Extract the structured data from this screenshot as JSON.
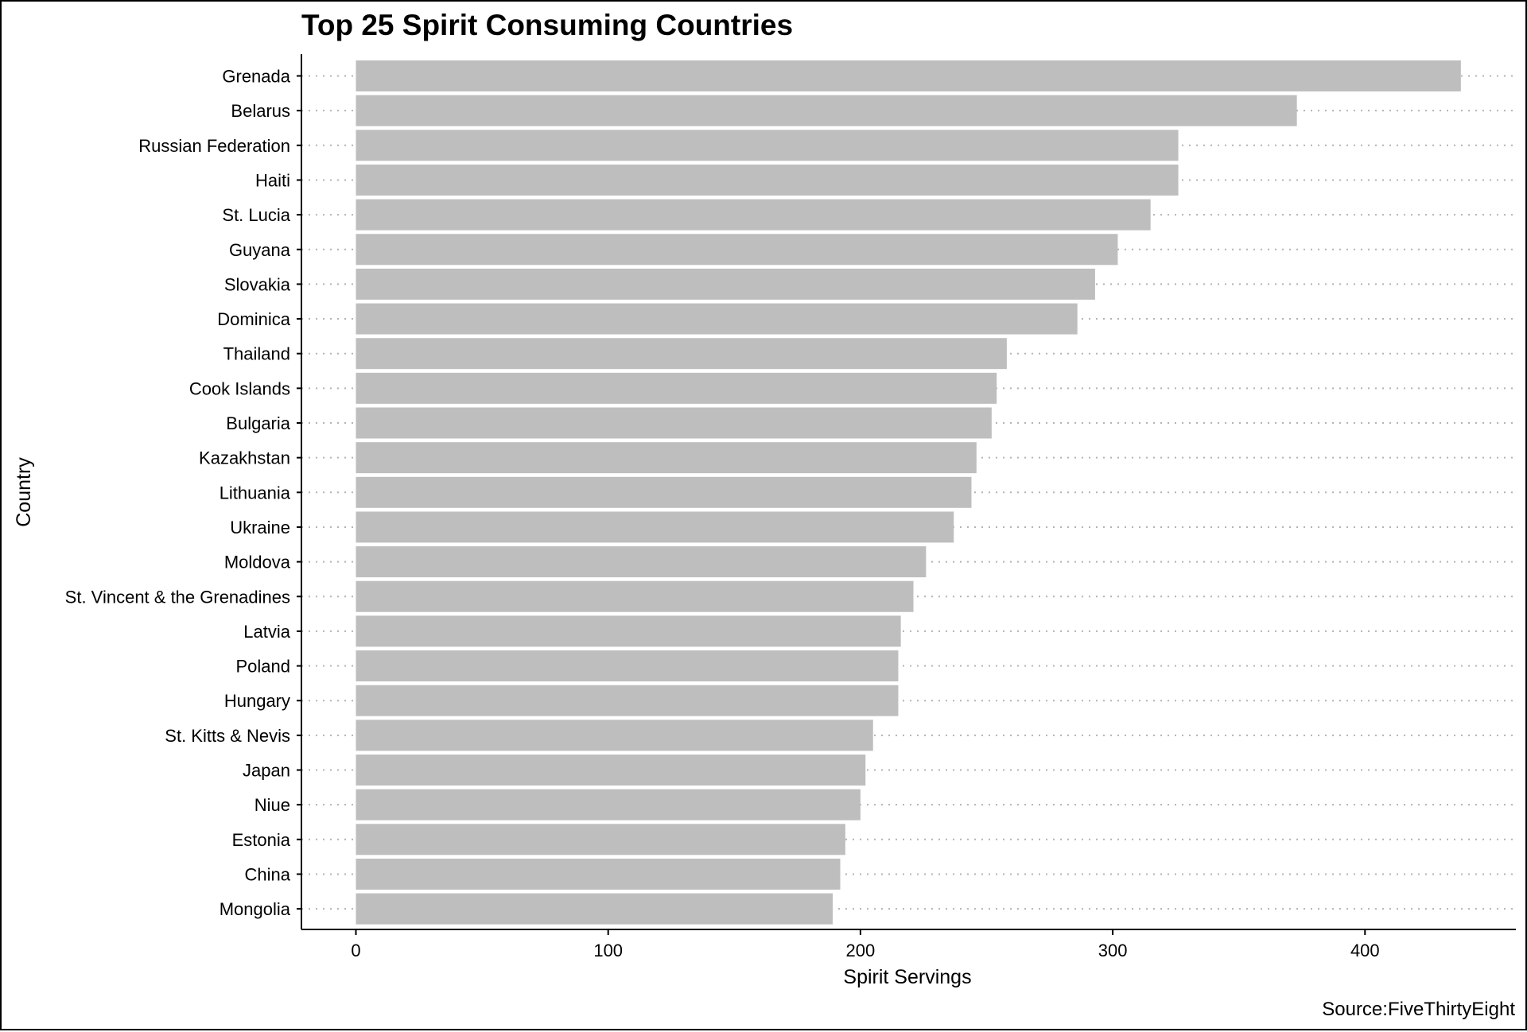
{
  "chart_data": {
    "type": "bar",
    "orientation": "horizontal",
    "title": "Top 25 Spirit Consuming Countries",
    "xlabel": "Spirit Servings",
    "ylabel": "Country",
    "caption": "Source:FiveThirtyEight",
    "xlim": [
      -21.9,
      459.9
    ],
    "xticks": [
      0,
      100,
      200,
      300,
      400
    ],
    "grid": "dotted horizontal lines",
    "bar_color": "#bebebe",
    "categories": [
      "Grenada",
      "Belarus",
      "Russian Federation",
      "Haiti",
      "St. Lucia",
      "Guyana",
      "Slovakia",
      "Dominica",
      "Thailand",
      "Cook Islands",
      "Bulgaria",
      "Kazakhstan",
      "Lithuania",
      "Ukraine",
      "Moldova",
      "St. Vincent & the Grenadines",
      "Latvia",
      "Poland",
      "Hungary",
      "St. Kitts & Nevis",
      "Japan",
      "Niue",
      "Estonia",
      "China",
      "Mongolia"
    ],
    "values": [
      438,
      373,
      326,
      326,
      315,
      302,
      293,
      286,
      258,
      254,
      252,
      246,
      244,
      237,
      226,
      221,
      216,
      215,
      215,
      205,
      202,
      200,
      194,
      192,
      189
    ]
  }
}
